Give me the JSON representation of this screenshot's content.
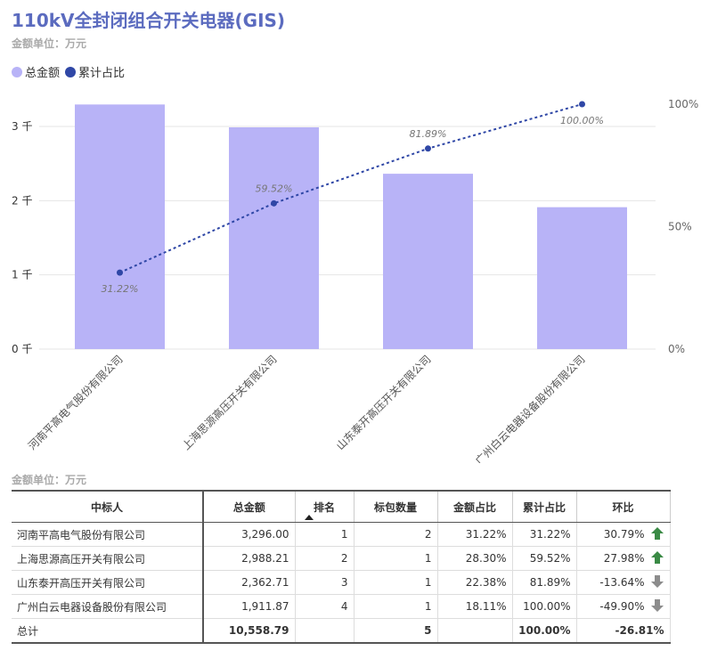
{
  "title": "110kV全封闭组合开关电器(GIS)",
  "unit_label": "金额单位：万元",
  "legend": [
    {
      "label": "总金额",
      "color": "#b8b3f7"
    },
    {
      "label": "累计占比",
      "color": "#2f47a6"
    }
  ],
  "chart_data": {
    "type": "bar+line",
    "categories": [
      "河南平高电气股份有限公司",
      "上海思源高压开关有限公司",
      "山东泰开高压开关有限公司",
      "广州白云电器设备股份有限公司"
    ],
    "series": [
      {
        "name": "总金额",
        "type": "bar",
        "axis": "left",
        "values": [
          3296.0,
          2988.21,
          2362.71,
          1911.87
        ]
      },
      {
        "name": "累计占比",
        "type": "line",
        "axis": "right",
        "values": [
          31.22,
          59.52,
          81.89,
          100.0
        ],
        "labels": [
          "31.22%",
          "59.52%",
          "81.89%",
          "100.00%"
        ]
      }
    ],
    "left_axis": {
      "ticks": [
        0,
        1000,
        2000,
        3000
      ],
      "tick_labels": [
        "0 千",
        "1 千",
        "2 千",
        "3 千"
      ],
      "range": [
        0,
        3300
      ]
    },
    "right_axis": {
      "ticks": [
        0,
        50,
        100
      ],
      "tick_labels": [
        "0%",
        "50%",
        "100%"
      ],
      "range": [
        0,
        100
      ]
    }
  },
  "table": {
    "unit_label": "金额单位：万元",
    "headers": [
      "中标人",
      "总金额",
      "排名",
      "标包数量",
      "金额占比",
      "累计占比",
      "环比"
    ],
    "rows": [
      {
        "name": "河南平高电气股份有限公司",
        "amount": "3,296.00",
        "rank": "1",
        "packages": "2",
        "share": "31.22%",
        "cum": "31.22%",
        "mom": "30.79%",
        "trend": "up"
      },
      {
        "name": "上海思源高压开关有限公司",
        "amount": "2,988.21",
        "rank": "2",
        "packages": "1",
        "share": "28.30%",
        "cum": "59.52%",
        "mom": "27.98%",
        "trend": "up"
      },
      {
        "name": "山东泰开高压开关有限公司",
        "amount": "2,362.71",
        "rank": "3",
        "packages": "1",
        "share": "22.38%",
        "cum": "81.89%",
        "mom": "-13.64%",
        "trend": "down"
      },
      {
        "name": "广州白云电器设备股份有限公司",
        "amount": "1,911.87",
        "rank": "4",
        "packages": "1",
        "share": "18.11%",
        "cum": "100.00%",
        "mom": "-49.90%",
        "trend": "down"
      }
    ],
    "total": {
      "name": "总计",
      "amount": "10,558.79",
      "rank": "",
      "packages": "5",
      "share": "",
      "cum": "100.00%",
      "mom": "-26.81%"
    }
  },
  "colors": {
    "up": "#3a8a45",
    "down": "#8c8c8c",
    "bar": "#b8b3f7",
    "line": "#2f47a6"
  }
}
